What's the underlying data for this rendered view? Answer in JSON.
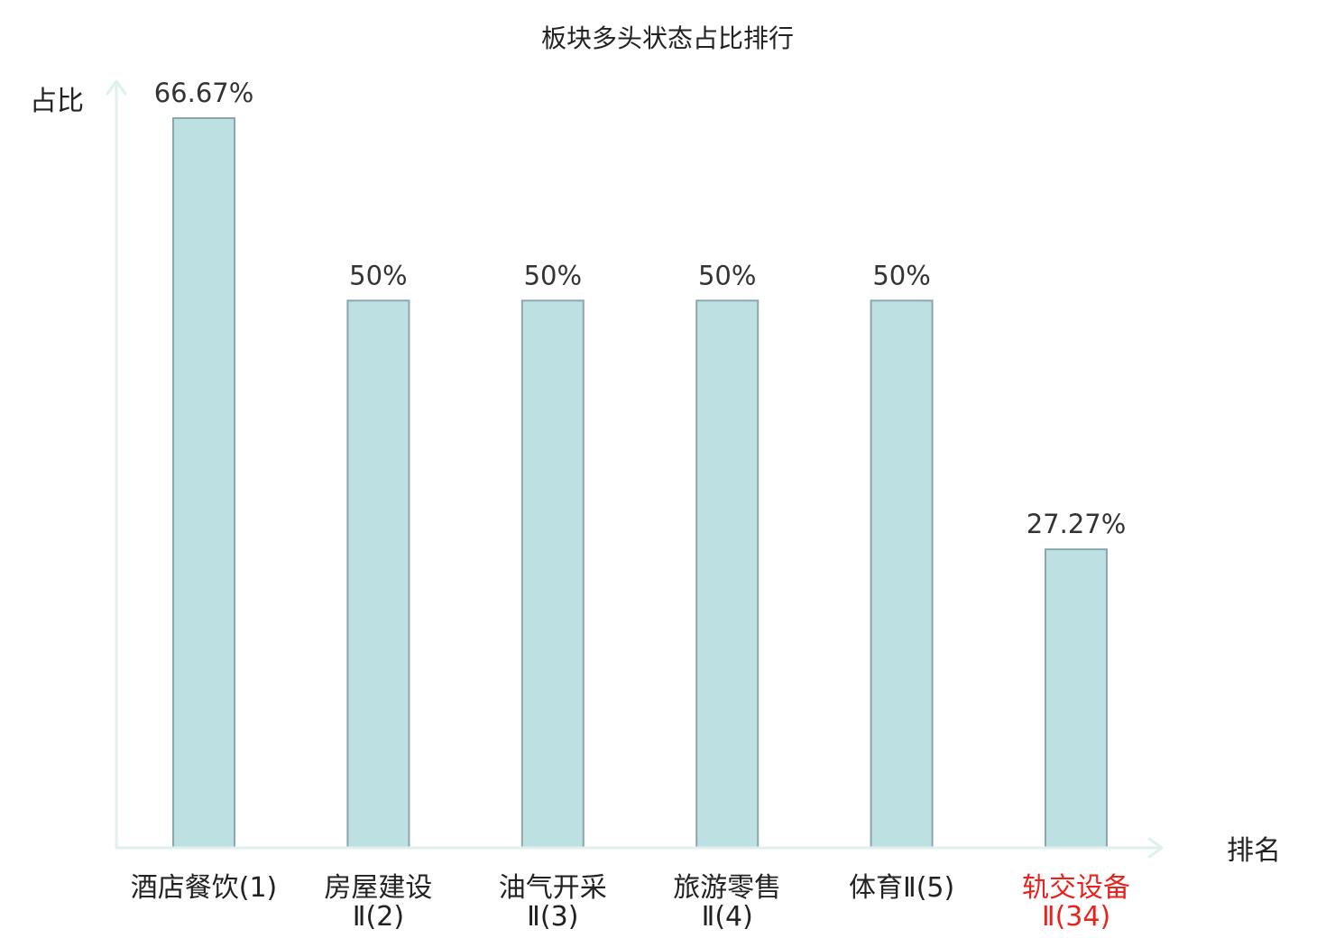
{
  "chart_data": {
    "type": "bar",
    "title": "板块多头状态占比排行",
    "ylabel": "占比",
    "xlabel": "排名",
    "ylim": [
      0,
      75
    ],
    "grid": false,
    "legend": "none",
    "categories": [
      [
        "酒店餐饮(1)"
      ],
      [
        "房屋建设",
        "Ⅱ(2)"
      ],
      [
        "油气开采",
        "Ⅱ(3)"
      ],
      [
        "旅游零售",
        "Ⅱ(4)"
      ],
      [
        "体育Ⅱ(5)"
      ],
      [
        "轨交设备",
        "Ⅱ(34)"
      ]
    ],
    "values": [
      66.67,
      50,
      50,
      50,
      50,
      27.27
    ],
    "value_labels": [
      "66.67%",
      "50%",
      "50%",
      "50%",
      "50%",
      "27.27%"
    ],
    "highlight_index": 5,
    "colors": {
      "bar_fill": "#bde0e3",
      "bar_stroke": "#8aa8ab",
      "axis": "#dff0ee",
      "label": "#222222",
      "highlight_label": "#e8221c"
    }
  }
}
